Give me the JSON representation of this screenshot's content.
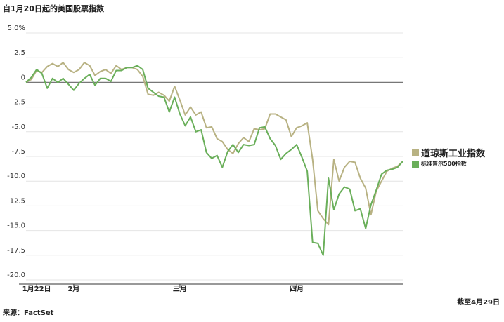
{
  "chart_data": {
    "type": "line",
    "title": "自1月20日起的美国股票指数",
    "source": "来源：FactSet",
    "as_of": "截至4月29日",
    "y_ticks": [
      "5.0%",
      "2.5",
      "0",
      "-2.5",
      "-5.0",
      "-7.5",
      "-10.0",
      "-12.5",
      "-15.0",
      "-17.5",
      "-20.0"
    ],
    "y_tick_values": [
      5,
      2.5,
      0,
      -2.5,
      -5,
      -7.5,
      -10,
      -12.5,
      -15,
      -17.5,
      -20
    ],
    "ylim": [
      -20,
      5
    ],
    "x_ticks": [
      {
        "label": "1月22日",
        "index": 2
      },
      {
        "label": "2月",
        "index": 9
      },
      {
        "label": "三月",
        "index": 29
      },
      {
        "label": "四月",
        "index": 51
      }
    ],
    "grid": true,
    "legend_position": "right",
    "series": [
      {
        "name": "道琼斯工业指数",
        "color": "#b8b283",
        "values": [
          0,
          0.3,
          1.2,
          1.0,
          1.6,
          1.9,
          1.6,
          2.0,
          1.3,
          1.0,
          1.3,
          2.0,
          1.7,
          0.7,
          1.1,
          1.3,
          0.9,
          1.7,
          1.3,
          1.5,
          1.5,
          1.3,
          0.6,
          -1.2,
          -1.3,
          -1.0,
          -1.3,
          -1.9,
          -0.4,
          -1.8,
          -3.3,
          -2.5,
          -3.3,
          -3.0,
          -4.6,
          -4.5,
          -5.7,
          -6.0,
          -6.8,
          -7.2,
          -6.2,
          -5.6,
          -6.0,
          -4.7,
          -4.8,
          -4.7,
          -3.2,
          -3.2,
          -3.5,
          -3.8,
          -5.5,
          -4.6,
          -4.4,
          -4.1,
          -7.8,
          -13.0,
          -13.8,
          -14.4,
          -7.8,
          -10.0,
          -8.6,
          -8.0,
          -8.1,
          -9.7,
          -10.7,
          -13.4,
          -11.0,
          -10.0,
          -9.0,
          -8.7,
          -8.5,
          -8.0
        ]
      },
      {
        "name": "标准普尔500指数",
        "color": "#6aaf5a",
        "values": [
          0,
          0.5,
          1.3,
          0.9,
          -0.6,
          0.4,
          0,
          0.4,
          -0.2,
          -0.8,
          -0.1,
          0.4,
          0.8,
          -0.3,
          0.4,
          0.4,
          0.1,
          1.2,
          1.2,
          1.5,
          1.5,
          1.7,
          1.3,
          -0.6,
          -1.0,
          -1.4,
          -1.5,
          -3.0,
          -1.5,
          -3.2,
          -4.4,
          -3.5,
          -5.0,
          -4.8,
          -7.1,
          -7.7,
          -7.4,
          -8.6,
          -7.0,
          -6.3,
          -7.1,
          -6.3,
          -6.4,
          -6.3,
          -4.6,
          -4.5,
          -5.7,
          -6.4,
          -7.8,
          -7.2,
          -6.8,
          -6.3,
          -7.6,
          -9.0,
          -16.2,
          -16.3,
          -17.5,
          -9.7,
          -12.9,
          -11.3,
          -10.6,
          -10.8,
          -13.0,
          -12.8,
          -14.8,
          -12.4,
          -10.9,
          -9.3,
          -8.9,
          -8.8,
          -8.6,
          -8.0
        ]
      }
    ]
  }
}
